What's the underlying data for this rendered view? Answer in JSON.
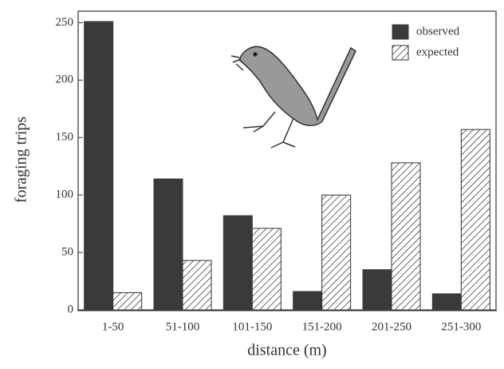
{
  "chart_data": {
    "type": "bar",
    "xlabel": "distance (m)",
    "ylabel": "foraging trips",
    "categories": [
      "1-50",
      "51-100",
      "101-150",
      "151-200",
      "201-250",
      "251-300"
    ],
    "series": [
      {
        "name": "observed",
        "color": "#3a3a3a",
        "values": [
          251,
          114,
          82,
          16,
          35,
          14
        ]
      },
      {
        "name": "expected",
        "color": "#555555",
        "values": [
          15,
          43,
          71,
          100,
          128,
          157
        ]
      }
    ],
    "ylim": [
      0,
      260
    ],
    "yticks": [
      0,
      50,
      100,
      150,
      200,
      250
    ],
    "legend": "upper-right"
  }
}
